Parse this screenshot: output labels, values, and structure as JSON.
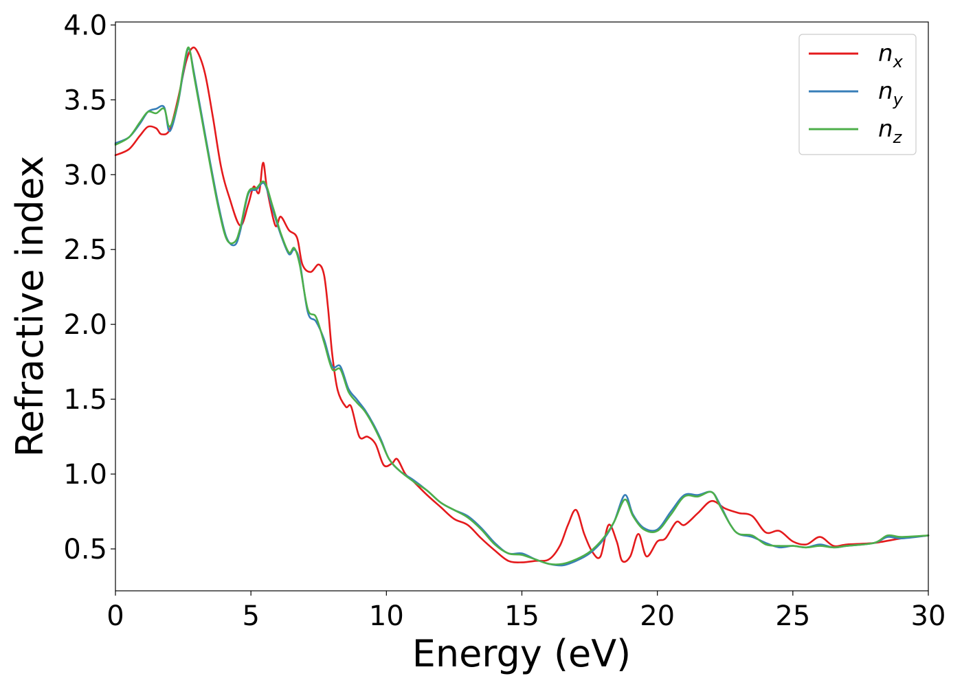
{
  "chart_data": {
    "type": "line",
    "title": "",
    "xlabel": "Energy (eV)",
    "ylabel": "Refractive index",
    "xlim": [
      0,
      30
    ],
    "ylim": [
      0.22,
      4.02
    ],
    "xticks": [
      0,
      5,
      10,
      15,
      20,
      25,
      30
    ],
    "xtick_labels": [
      "0",
      "5",
      "10",
      "15",
      "20",
      "25",
      "30"
    ],
    "yticks": [
      0.5,
      1.0,
      1.5,
      2.0,
      2.5,
      3.0,
      3.5,
      4.0
    ],
    "ytick_labels": [
      "0.5",
      "1.0",
      "1.5",
      "2.0",
      "2.5",
      "3.0",
      "3.5",
      "4.0"
    ],
    "grid": false,
    "legend_position": "top-right",
    "series": [
      {
        "name": "n_x",
        "label_base": "n",
        "label_sub": "x",
        "color": "#e41a1c",
        "x": [
          0,
          0.5,
          0.9,
          1.2,
          1.5,
          1.7,
          2.0,
          2.3,
          2.6,
          2.8,
          3.0,
          3.3,
          3.6,
          3.9,
          4.2,
          4.6,
          4.9,
          5.1,
          5.3,
          5.45,
          5.6,
          5.9,
          6.1,
          6.4,
          6.7,
          6.9,
          7.2,
          7.5,
          7.7,
          7.85,
          8.0,
          8.2,
          8.5,
          8.7,
          9.0,
          9.3,
          9.6,
          9.9,
          10.2,
          10.4,
          10.7,
          11.0,
          11.5,
          12.0,
          12.5,
          13.0,
          13.5,
          14.0,
          14.5,
          15.0,
          15.5,
          16.0,
          16.4,
          16.7,
          17.0,
          17.3,
          17.6,
          17.9,
          18.2,
          18.5,
          18.7,
          19.0,
          19.3,
          19.6,
          20.0,
          20.3,
          20.7,
          21.0,
          21.5,
          22.0,
          22.5,
          23.0,
          23.5,
          24.0,
          24.5,
          25.0,
          25.5,
          26.0,
          26.5,
          27.0,
          28.0,
          29.0,
          30.0
        ],
        "y": [
          3.13,
          3.17,
          3.26,
          3.32,
          3.31,
          3.27,
          3.3,
          3.5,
          3.75,
          3.84,
          3.83,
          3.68,
          3.38,
          3.05,
          2.85,
          2.66,
          2.8,
          2.92,
          2.88,
          3.08,
          2.9,
          2.66,
          2.72,
          2.63,
          2.58,
          2.4,
          2.35,
          2.4,
          2.33,
          2.1,
          1.8,
          1.56,
          1.45,
          1.45,
          1.25,
          1.25,
          1.2,
          1.06,
          1.07,
          1.1,
          1.0,
          0.95,
          0.86,
          0.78,
          0.7,
          0.66,
          0.57,
          0.49,
          0.42,
          0.41,
          0.42,
          0.43,
          0.52,
          0.66,
          0.76,
          0.6,
          0.48,
          0.45,
          0.66,
          0.55,
          0.42,
          0.45,
          0.6,
          0.45,
          0.55,
          0.57,
          0.68,
          0.66,
          0.74,
          0.82,
          0.77,
          0.74,
          0.72,
          0.61,
          0.62,
          0.55,
          0.53,
          0.58,
          0.52,
          0.53,
          0.54,
          0.57,
          0.59
        ]
      },
      {
        "name": "n_y",
        "label_base": "n",
        "label_sub": "y",
        "color": "#377eb8",
        "x": [
          0,
          0.5,
          0.9,
          1.2,
          1.5,
          1.8,
          2.0,
          2.3,
          2.5,
          2.7,
          2.9,
          3.2,
          3.5,
          3.8,
          4.1,
          4.4,
          4.6,
          4.9,
          5.2,
          5.5,
          5.8,
          6.1,
          6.4,
          6.6,
          6.8,
          7.1,
          7.4,
          7.7,
          8.0,
          8.3,
          8.6,
          8.9,
          9.2,
          9.5,
          9.8,
          10.1,
          10.5,
          11.0,
          11.5,
          12.0,
          12.5,
          13.0,
          13.5,
          14.0,
          14.5,
          15.0,
          15.5,
          16.0,
          16.5,
          17.0,
          17.5,
          18.0,
          18.4,
          18.8,
          19.1,
          19.5,
          20.0,
          20.5,
          21.0,
          21.5,
          22.0,
          22.3,
          22.7,
          23.0,
          23.5,
          24.0,
          24.5,
          25.0,
          25.5,
          26.0,
          26.5,
          27.0,
          28.0,
          28.5,
          29.0,
          30.0
        ],
        "y": [
          3.21,
          3.25,
          3.34,
          3.42,
          3.44,
          3.45,
          3.29,
          3.47,
          3.68,
          3.84,
          3.68,
          3.38,
          3.08,
          2.8,
          2.58,
          2.53,
          2.62,
          2.87,
          2.9,
          2.94,
          2.77,
          2.6,
          2.47,
          2.5,
          2.42,
          2.08,
          2.02,
          1.9,
          1.72,
          1.72,
          1.57,
          1.5,
          1.43,
          1.34,
          1.23,
          1.1,
          1.02,
          0.96,
          0.89,
          0.81,
          0.76,
          0.72,
          0.64,
          0.54,
          0.47,
          0.47,
          0.43,
          0.4,
          0.39,
          0.42,
          0.47,
          0.56,
          0.68,
          0.86,
          0.73,
          0.64,
          0.63,
          0.75,
          0.86,
          0.86,
          0.88,
          0.8,
          0.66,
          0.6,
          0.58,
          0.54,
          0.51,
          0.52,
          0.51,
          0.53,
          0.51,
          0.52,
          0.54,
          0.58,
          0.57,
          0.59
        ]
      },
      {
        "name": "n_z",
        "label_base": "n",
        "label_sub": "z",
        "color": "#4daf4a",
        "x": [
          0,
          0.5,
          0.9,
          1.2,
          1.5,
          1.8,
          2.0,
          2.3,
          2.5,
          2.7,
          2.9,
          3.2,
          3.5,
          3.8,
          4.1,
          4.4,
          4.6,
          4.9,
          5.2,
          5.5,
          5.8,
          6.1,
          6.4,
          6.6,
          6.8,
          7.1,
          7.4,
          7.7,
          8.0,
          8.3,
          8.6,
          8.9,
          9.2,
          9.5,
          9.8,
          10.1,
          10.5,
          11.0,
          11.5,
          12.0,
          12.5,
          13.0,
          13.5,
          14.0,
          14.5,
          15.0,
          15.5,
          16.0,
          16.5,
          17.0,
          17.5,
          18.0,
          18.4,
          18.8,
          19.1,
          19.5,
          20.0,
          20.5,
          21.0,
          21.5,
          22.0,
          22.3,
          22.7,
          23.0,
          23.5,
          24.0,
          24.5,
          25.0,
          25.5,
          26.0,
          26.5,
          27.0,
          28.0,
          28.5,
          29.0,
          30.0
        ],
        "y": [
          3.2,
          3.25,
          3.35,
          3.42,
          3.41,
          3.44,
          3.32,
          3.48,
          3.7,
          3.85,
          3.66,
          3.36,
          3.06,
          2.78,
          2.57,
          2.55,
          2.64,
          2.88,
          2.91,
          2.95,
          2.79,
          2.61,
          2.48,
          2.51,
          2.4,
          2.1,
          2.05,
          1.88,
          1.7,
          1.7,
          1.55,
          1.48,
          1.42,
          1.33,
          1.22,
          1.1,
          1.02,
          0.95,
          0.89,
          0.81,
          0.76,
          0.71,
          0.63,
          0.53,
          0.47,
          0.46,
          0.43,
          0.4,
          0.4,
          0.43,
          0.48,
          0.57,
          0.68,
          0.83,
          0.72,
          0.63,
          0.62,
          0.73,
          0.85,
          0.85,
          0.88,
          0.79,
          0.66,
          0.6,
          0.59,
          0.53,
          0.52,
          0.52,
          0.51,
          0.52,
          0.51,
          0.52,
          0.54,
          0.59,
          0.58,
          0.59
        ]
      }
    ]
  }
}
